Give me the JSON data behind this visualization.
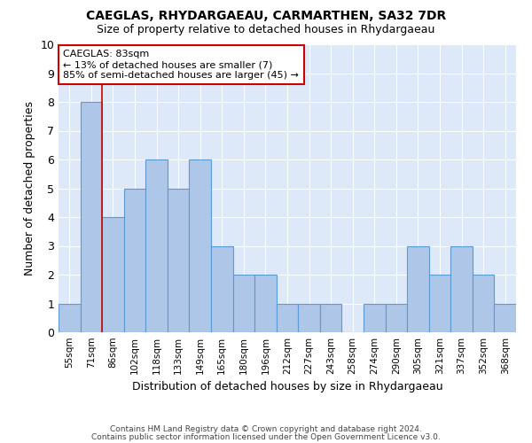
{
  "title": "CAEGLAS, RHYDARGAEAU, CARMARTHEN, SA32 7DR",
  "subtitle": "Size of property relative to detached houses in Rhydargaeau",
  "xlabel": "Distribution of detached houses by size in Rhydargaeau",
  "ylabel": "Number of detached properties",
  "footer1": "Contains HM Land Registry data © Crown copyright and database right 2024.",
  "footer2": "Contains public sector information licensed under the Open Government Licence v3.0.",
  "categories": [
    "55sqm",
    "71sqm",
    "86sqm",
    "102sqm",
    "118sqm",
    "133sqm",
    "149sqm",
    "165sqm",
    "180sqm",
    "196sqm",
    "212sqm",
    "227sqm",
    "243sqm",
    "258sqm",
    "274sqm",
    "290sqm",
    "305sqm",
    "321sqm",
    "337sqm",
    "352sqm",
    "368sqm"
  ],
  "values": [
    1,
    8,
    4,
    5,
    6,
    5,
    6,
    3,
    2,
    2,
    1,
    1,
    1,
    0,
    1,
    1,
    3,
    2,
    3,
    2,
    1
  ],
  "bar_color": "#aec6e8",
  "bar_edge_color": "#5b9bd5",
  "annotation_box_color": "#cc0000",
  "annotation_line_color": "#cc0000",
  "annotation_text": "CAEGLAS: 83sqm\n← 13% of detached houses are smaller (7)\n85% of semi-detached houses are larger (45) →",
  "property_bar_index": 1,
  "ylim": [
    0,
    10
  ],
  "background_color": "#dde8f8",
  "grid_color": "#ffffff"
}
